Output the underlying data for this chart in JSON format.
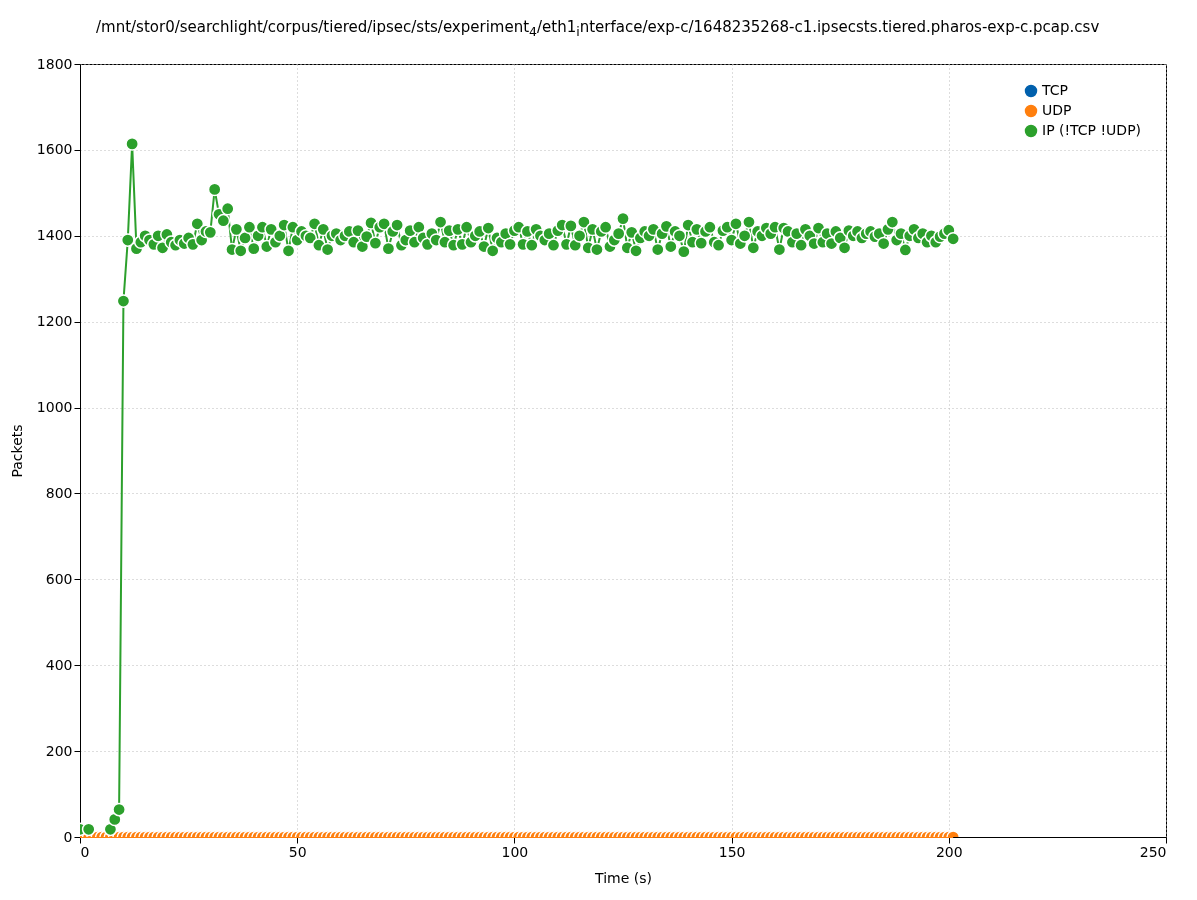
{
  "chart_data": {
    "type": "line",
    "title": "/mnt/stor0/searchlight/corpus/tiered/ipsec/sts/experiment$_{4}$/eth1$_{i}$nterface/exp-c/1648235268-c1.ipsecsts.tiered.pharos-exp-c.pcap.csv",
    "xlabel": "Time (s)",
    "ylabel": "Packets",
    "x": [
      0,
      1,
      2,
      3,
      4,
      5,
      6,
      7,
      8,
      9,
      10,
      11,
      12,
      13,
      14,
      15,
      16,
      17,
      18,
      19,
      20,
      21,
      22,
      23,
      24,
      25,
      26,
      27,
      28,
      29,
      30,
      31,
      32,
      33,
      34,
      35,
      36,
      37,
      38,
      39,
      40,
      41,
      42,
      43,
      44,
      45,
      46,
      47,
      48,
      49,
      50,
      51,
      52,
      53,
      54,
      55,
      56,
      57,
      58,
      59,
      60,
      61,
      62,
      63,
      64,
      65,
      66,
      67,
      68,
      69,
      70,
      71,
      72,
      73,
      74,
      75,
      76,
      77,
      78,
      79,
      80,
      81,
      82,
      83,
      84,
      85,
      86,
      87,
      88,
      89,
      90,
      91,
      92,
      93,
      94,
      95,
      96,
      97,
      98,
      99,
      100,
      101,
      102,
      103,
      104,
      105,
      106,
      107,
      108,
      109,
      110,
      111,
      112,
      113,
      114,
      115,
      116,
      117,
      118,
      119,
      120,
      121,
      122,
      123,
      124,
      125,
      126,
      127,
      128,
      129,
      130,
      131,
      132,
      133,
      134,
      135,
      136,
      137,
      138,
      139,
      140,
      141,
      142,
      143,
      144,
      145,
      146,
      147,
      148,
      149,
      150,
      151,
      152,
      153,
      154,
      155,
      156,
      157,
      158,
      159,
      160,
      161,
      162,
      163,
      164,
      165,
      166,
      167,
      168,
      169,
      170,
      171,
      172,
      173,
      174,
      175,
      176,
      177,
      178,
      179,
      180,
      181,
      182,
      183,
      184,
      185,
      186,
      187,
      188,
      189,
      190,
      191,
      192,
      193,
      194,
      195,
      196,
      197,
      198,
      199,
      200,
      201
    ],
    "series": [
      {
        "name": "TCP",
        "color": "#0060ad",
        "values": [
          null,
          null,
          null,
          null,
          null,
          null,
          null,
          null,
          null,
          null,
          null,
          null,
          null,
          null,
          null,
          null,
          null,
          null,
          null,
          null,
          null,
          null,
          null,
          null,
          null,
          null,
          null,
          null,
          null,
          null,
          null,
          null,
          null,
          null,
          null,
          null,
          null,
          null,
          null,
          null,
          null,
          null,
          null,
          null,
          null,
          null,
          null,
          null,
          null,
          null,
          null,
          null,
          null,
          null,
          null,
          null,
          null,
          null,
          null,
          null,
          null,
          null,
          null,
          null,
          null,
          null,
          null,
          null,
          null,
          null,
          null,
          null,
          null,
          null,
          null,
          null,
          null,
          null,
          null,
          null,
          null,
          null,
          null,
          null,
          null,
          null,
          null,
          null,
          null,
          null,
          null,
          null,
          null,
          null,
          null,
          null,
          null,
          null,
          null,
          null,
          null,
          null,
          null,
          null,
          null,
          null,
          null,
          null,
          null,
          null,
          null,
          null,
          null,
          null,
          null,
          null,
          null,
          null,
          null,
          null,
          null,
          null,
          null,
          null,
          null,
          null,
          null,
          null,
          null,
          null,
          null,
          null,
          null,
          null,
          null,
          null,
          null,
          null,
          null,
          null,
          null,
          null,
          null,
          null,
          null,
          null,
          null,
          null,
          null,
          null,
          null,
          null,
          null,
          null,
          null,
          null,
          null,
          null,
          null,
          null,
          null,
          null,
          null,
          null,
          null,
          null,
          null,
          null,
          null,
          null,
          null,
          null,
          null,
          null,
          null,
          null,
          null,
          null,
          null,
          null,
          null,
          null,
          null,
          null,
          null,
          null,
          null,
          null,
          null,
          null,
          null,
          null,
          null,
          null,
          null,
          null,
          null,
          null,
          null,
          null,
          null,
          null
        ]
      },
      {
        "name": "UDP",
        "color": "#ff7f0e",
        "values": [
          0,
          0,
          0,
          0,
          0,
          0,
          0,
          0,
          0,
          0,
          0,
          0,
          0,
          0,
          0,
          0,
          0,
          0,
          0,
          0,
          0,
          0,
          0,
          0,
          0,
          0,
          0,
          0,
          0,
          0,
          0,
          0,
          0,
          0,
          0,
          0,
          0,
          0,
          0,
          0,
          0,
          0,
          0,
          0,
          0,
          0,
          0,
          0,
          0,
          0,
          0,
          0,
          0,
          0,
          0,
          0,
          0,
          0,
          0,
          0,
          0,
          0,
          0,
          0,
          0,
          0,
          0,
          0,
          0,
          0,
          0,
          0,
          0,
          0,
          0,
          0,
          0,
          0,
          0,
          0,
          0,
          0,
          0,
          0,
          0,
          0,
          0,
          0,
          0,
          0,
          0,
          0,
          0,
          0,
          0,
          0,
          0,
          0,
          0,
          0,
          0,
          0,
          0,
          0,
          0,
          0,
          0,
          0,
          0,
          0,
          0,
          0,
          0,
          0,
          0,
          0,
          0,
          0,
          0,
          0,
          0,
          0,
          0,
          0,
          0,
          0,
          0,
          0,
          0,
          0,
          0,
          0,
          0,
          0,
          0,
          0,
          0,
          0,
          0,
          0,
          0,
          0,
          0,
          0,
          0,
          0,
          0,
          0,
          0,
          0,
          0,
          0,
          0,
          0,
          0,
          0,
          0,
          0,
          0,
          0,
          0,
          0,
          0,
          0,
          0,
          0,
          0,
          0,
          0,
          0,
          0,
          0,
          0,
          0,
          0,
          0,
          0,
          0,
          0,
          0,
          0,
          0,
          0,
          0,
          0,
          0,
          0,
          0,
          0,
          0,
          0,
          0,
          0,
          0,
          0,
          0,
          0,
          0,
          0,
          0,
          0,
          0
        ]
      },
      {
        "name": "IP (!TCP  !UDP)",
        "color": "#2ca02c",
        "values": [
          18,
          null,
          18,
          null,
          null,
          null,
          null,
          18,
          41,
          64,
          1248,
          1390,
          1614,
          1370,
          1385,
          1400,
          1390,
          1380,
          1400,
          1372,
          1403,
          1385,
          1378,
          1390,
          1382,
          1395,
          1380,
          1428,
          1390,
          1410,
          1408,
          1508,
          1450,
          1435,
          1463,
          1368,
          1415,
          1365,
          1395,
          1420,
          1370,
          1400,
          1420,
          1375,
          1415,
          1385,
          1400,
          1425,
          1365,
          1420,
          1390,
          1410,
          1400,
          1395,
          1428,
          1378,
          1415,
          1368,
          1400,
          1405,
          1390,
          1400,
          1410,
          1385,
          1412,
          1375,
          1398,
          1430,
          1383,
          1420,
          1428,
          1370,
          1410,
          1425,
          1378,
          1390,
          1412,
          1385,
          1420,
          1395,
          1380,
          1405,
          1390,
          1432,
          1385,
          1412,
          1378,
          1415,
          1380,
          1420,
          1385,
          1400,
          1410,
          1375,
          1418,
          1365,
          1395,
          1385,
          1405,
          1380,
          1412,
          1420,
          1380,
          1410,
          1378,
          1415,
          1400,
          1390,
          1405,
          1378,
          1412,
          1425,
          1380,
          1423,
          1378,
          1400,
          1432,
          1372,
          1415,
          1368,
          1410,
          1420,
          1375,
          1390,
          1405,
          1440,
          1372,
          1408,
          1365,
          1395,
          1410,
          1400,
          1415,
          1368,
          1405,
          1422,
          1375,
          1410,
          1400,
          1363,
          1425,
          1385,
          1415,
          1383,
          1410,
          1420,
          1385,
          1378,
          1412,
          1420,
          1390,
          1428,
          1382,
          1400,
          1432,
          1372,
          1410,
          1400,
          1418,
          1405,
          1420,
          1368,
          1418,
          1410,
          1385,
          1405,
          1378,
          1415,
          1400,
          1382,
          1418,
          1385,
          1405,
          1382,
          1410,
          1395,
          1372,
          1412,
          1400,
          1410,
          1395,
          1405,
          1410,
          1398,
          1405,
          1382,
          1415,
          1432,
          1390,
          1405,
          1367,
          1400,
          1415,
          1395,
          1405,
          1385,
          1400,
          1385,
          1398,
          1405,
          1413,
          1393
        ]
      }
    ],
    "xlim": [
      0,
      250
    ],
    "xticks": [
      0,
      50,
      100,
      150,
      200,
      250
    ],
    "ylim": [
      0,
      1800
    ],
    "yticks": [
      0,
      200,
      400,
      600,
      800,
      1000,
      1200,
      1400,
      1600,
      1800
    ],
    "grid": true,
    "legend": "top right",
    "marker": "circle",
    "line_style": "solid"
  }
}
